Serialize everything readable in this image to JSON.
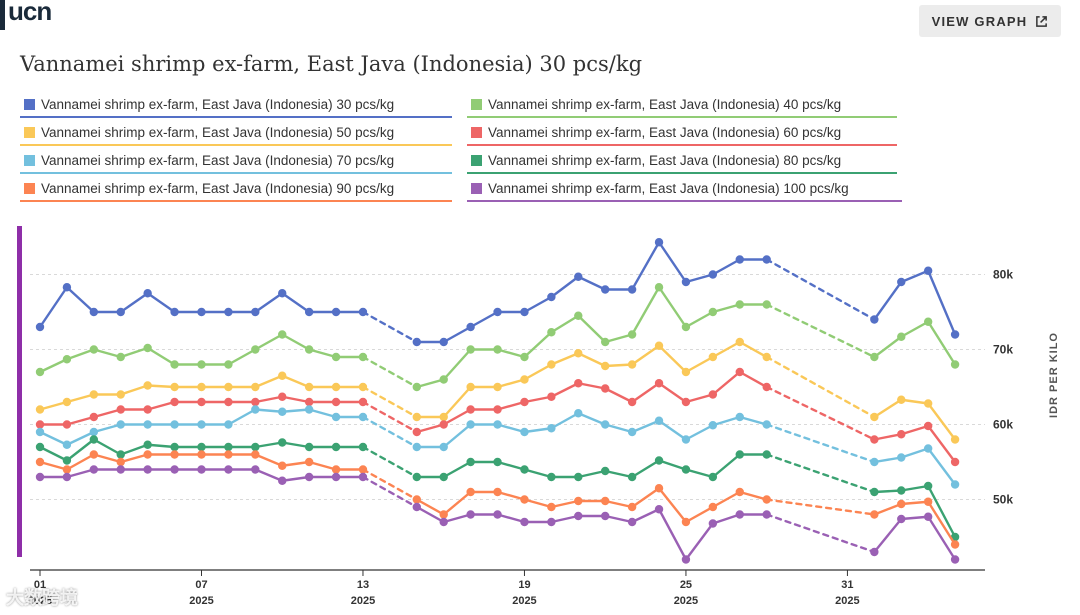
{
  "header": {
    "logo_text": "ucn",
    "view_graph_label": "VIEW GRAPH"
  },
  "chart_data": {
    "type": "line",
    "title": "Vannamei shrimp ex-farm, East Java (Indonesia) 30 pcs/kg",
    "ylabel": "IDR PER KILO",
    "ylim": [
      41000,
      85000
    ],
    "yticks": [
      {
        "v": 50000,
        "label": "50k"
      },
      {
        "v": 60000,
        "label": "60k"
      },
      {
        "v": 70000,
        "label": "70k"
      },
      {
        "v": 80000,
        "label": "80k"
      }
    ],
    "xrange": [
      1,
      36
    ],
    "xticks": [
      {
        "day": 1,
        "label": "01",
        "year": "2025"
      },
      {
        "day": 7,
        "label": "07",
        "year": "2025"
      },
      {
        "day": 13,
        "label": "13",
        "year": "2025"
      },
      {
        "day": 19,
        "label": "19",
        "year": "2025"
      },
      {
        "day": 25,
        "label": "25",
        "year": "2025"
      },
      {
        "day": 31,
        "label": "31",
        "year": "2025"
      }
    ],
    "x": [
      1,
      2,
      3,
      4,
      5,
      6,
      7,
      8,
      9,
      10,
      11,
      12,
      13,
      15,
      16,
      17,
      18,
      19,
      20,
      21,
      22,
      23,
      24,
      25,
      26,
      27,
      28,
      32,
      33,
      34,
      35
    ],
    "gaps": [
      [
        13,
        15
      ],
      [
        28,
        32
      ]
    ],
    "series": [
      {
        "name": "Vannamei shrimp ex-farm, East Java (Indonesia) 30 pcs/kg",
        "color": "#5470c6",
        "values": [
          73000,
          78300,
          75000,
          75000,
          77500,
          75000,
          75000,
          75000,
          75000,
          77500,
          75000,
          75000,
          75000,
          71000,
          71000,
          73000,
          75000,
          75000,
          77000,
          79700,
          78000,
          78000,
          84300,
          79000,
          80000,
          82000,
          82000,
          74000,
          79000,
          80500,
          72000
        ]
      },
      {
        "name": "Vannamei shrimp ex-farm, East Java (Indonesia) 40 pcs/kg",
        "color": "#91cc75",
        "values": [
          67000,
          68700,
          70000,
          69000,
          70200,
          68000,
          68000,
          68000,
          70000,
          72000,
          70000,
          69000,
          69000,
          65000,
          66000,
          70000,
          70000,
          69000,
          72300,
          74500,
          71000,
          72000,
          78300,
          73000,
          75000,
          76000,
          76000,
          69000,
          71700,
          73700,
          68000
        ]
      },
      {
        "name": "Vannamei shrimp ex-farm, East Java (Indonesia) 50 pcs/kg",
        "color": "#fac858",
        "values": [
          62000,
          63000,
          64000,
          64000,
          65200,
          65000,
          65000,
          65000,
          65000,
          66500,
          65000,
          65000,
          65000,
          61000,
          61000,
          65000,
          65000,
          66000,
          68000,
          69500,
          67800,
          68000,
          70500,
          67000,
          69000,
          71000,
          69000,
          61000,
          63300,
          62800,
          58000
        ]
      },
      {
        "name": "Vannamei shrimp ex-farm, East Java (Indonesia) 60 pcs/kg",
        "color": "#ee6666",
        "values": [
          60000,
          60000,
          61000,
          62000,
          62000,
          63000,
          63000,
          63000,
          63000,
          63700,
          63000,
          63000,
          63000,
          59000,
          60000,
          62000,
          62000,
          63000,
          63700,
          65500,
          64800,
          63000,
          65500,
          63000,
          64000,
          67000,
          65000,
          58000,
          58700,
          59800,
          55000
        ]
      },
      {
        "name": "Vannamei shrimp ex-farm, East Java (Indonesia) 70 pcs/kg",
        "color": "#73c0de",
        "values": [
          59000,
          57300,
          59000,
          60000,
          60000,
          60000,
          60000,
          60000,
          62000,
          61700,
          62000,
          61000,
          61000,
          57000,
          57000,
          60000,
          60000,
          59000,
          59500,
          61500,
          60000,
          59000,
          60500,
          58000,
          59900,
          61000,
          60000,
          55000,
          55600,
          56800,
          52000
        ]
      },
      {
        "name": "Vannamei shrimp ex-farm, East Java (Indonesia) 80 pcs/kg",
        "color": "#3ba272",
        "values": [
          57000,
          55200,
          58000,
          56000,
          57300,
          57000,
          57000,
          57000,
          57000,
          57600,
          57000,
          57000,
          57000,
          53000,
          53000,
          55000,
          55000,
          54000,
          53000,
          53000,
          53800,
          53000,
          55200,
          54000,
          53000,
          56000,
          56000,
          51000,
          51200,
          51800,
          45000
        ]
      },
      {
        "name": "Vannamei shrimp ex-farm, East Java (Indonesia) 90 pcs/kg",
        "color": "#fc8452",
        "values": [
          55000,
          54000,
          56000,
          55000,
          56000,
          56000,
          56000,
          56000,
          56000,
          54500,
          55000,
          54000,
          54000,
          50000,
          48000,
          51000,
          51000,
          50000,
          49000,
          49800,
          49800,
          49000,
          51500,
          47000,
          49000,
          51000,
          50000,
          48000,
          49400,
          49700,
          44000
        ]
      },
      {
        "name": "Vannamei shrimp ex-farm, East Java (Indonesia) 100 pcs/kg",
        "color": "#9a60b4",
        "values": [
          53000,
          53000,
          54000,
          54000,
          54000,
          54000,
          54000,
          54000,
          54000,
          52500,
          53000,
          53000,
          53000,
          49000,
          47000,
          48000,
          48000,
          47000,
          47000,
          47800,
          47800,
          47000,
          48700,
          42000,
          46800,
          48000,
          48000,
          43000,
          47400,
          47700,
          42000
        ]
      }
    ]
  },
  "watermark": "大数跨境"
}
